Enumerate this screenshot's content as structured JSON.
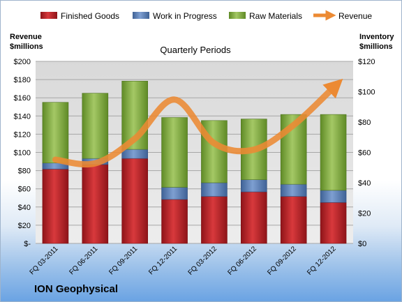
{
  "chart_data": {
    "type": "bar",
    "title": "Quarterly Periods",
    "company": "ION Geophysical",
    "left_axis_label": [
      "Revenue",
      "$millions"
    ],
    "right_axis_label": [
      "Inventory",
      "$millions"
    ],
    "left_ticks": [
      "$-",
      "$20",
      "$40",
      "$60",
      "$80",
      "$100",
      "$120",
      "$140",
      "$160",
      "$180",
      "$200"
    ],
    "right_ticks": [
      "$0",
      "$20",
      "$40",
      "$60",
      "$80",
      "$100",
      "$120"
    ],
    "ylim_left": [
      0,
      200
    ],
    "ylim_right": [
      0,
      120
    ],
    "categories": [
      "FQ 03-2011",
      "FQ 06-2011",
      "FQ 09-2011",
      "FQ 12-2011",
      "FQ 03-2012",
      "FQ 06-2012",
      "FQ 09-2012",
      "FQ 12-2012"
    ],
    "series": [
      {
        "name": "Finished Goods",
        "type": "bar-stacked",
        "axis": "right",
        "color": "#c0282c",
        "values": [
          49,
          52,
          56,
          29,
          31,
          34,
          31,
          27
        ]
      },
      {
        "name": "Work in Progress",
        "type": "bar-stacked",
        "axis": "right",
        "color": "#5e84bd",
        "values": [
          4,
          4,
          6,
          8,
          9,
          8,
          8,
          8
        ]
      },
      {
        "name": "Raw Materials",
        "type": "bar-stacked",
        "axis": "right",
        "color": "#8db44a",
        "values": [
          40,
          43,
          45,
          46,
          41,
          40,
          46,
          50
        ]
      },
      {
        "name": "Revenue",
        "type": "line",
        "axis": "left",
        "color": "#ec8a33",
        "values": [
          92,
          88,
          115,
          158,
          110,
          103,
          130,
          171
        ]
      }
    ],
    "legend_position": "top",
    "grid": true
  }
}
